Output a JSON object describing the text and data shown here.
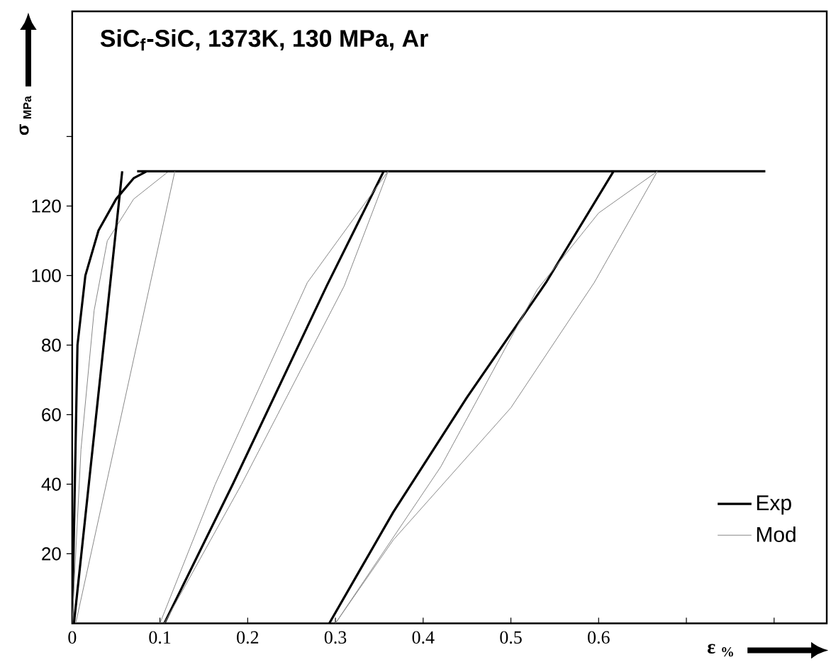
{
  "chart_data": {
    "type": "line",
    "title": "SiC$_{f}$-SiC, 1373K, 130 MPa, Ar",
    "xlabel": "ε $_{%}$",
    "ylabel": "σ $_{MPa}$",
    "xlim": [
      0,
      0.86
    ],
    "ylim": [
      0,
      176
    ],
    "xticks": [
      0,
      0.1,
      0.2,
      0.3,
      0.4,
      0.5,
      0.6,
      {
        "value": 0.7,
        "label": null
      },
      {
        "value": 0.8,
        "label": null
      }
    ],
    "yticks": [
      20,
      40,
      60,
      80,
      100,
      120,
      {
        "value": 140,
        "label": null
      }
    ],
    "legend": "bottom right",
    "grid": false,
    "marker": "none",
    "line_style": "solid",
    "series": [
      {
        "name": "Exp",
        "color": "#000000",
        "x": [
          0,
          0.003,
          0.006,
          0.015,
          0.03,
          0.05,
          0.07,
          0.085
        ],
        "values": [
          0,
          40,
          80,
          100,
          113,
          122,
          128,
          130
        ]
      },
      {
        "name": "Mod",
        "color": "#888888",
        "x": [
          0,
          0.01,
          0.025,
          0.04,
          0.07,
          0.11
        ],
        "values": [
          0,
          50,
          90,
          110,
          122,
          130
        ]
      },
      {
        "color": "#000000",
        "x": [
          0.074,
          0.79
        ],
        "values": [
          130,
          130
        ]
      },
      {
        "color": "#000000",
        "x": [
          0.057,
          0.002
        ],
        "values": [
          130,
          0
        ]
      },
      {
        "color": "#888888",
        "x": [
          0.117,
          0.004
        ],
        "values": [
          130,
          0
        ]
      },
      {
        "color": "#000000",
        "x": [
          0.105,
          0.183,
          0.29,
          0.355
        ],
        "values": [
          0,
          40,
          97,
          130
        ]
      },
      {
        "color": "#888888",
        "x": [
          0.1,
          0.163,
          0.268,
          0.36,
          0.31,
          0.193,
          0.105
        ],
        "values": [
          0,
          40,
          98,
          130,
          97,
          40,
          0
        ]
      },
      {
        "color": "#000000",
        "x": [
          0.293,
          0.366,
          0.45,
          0.54,
          0.617
        ],
        "values": [
          0,
          32,
          65,
          98,
          130
        ]
      },
      {
        "color": "#888888",
        "x": [
          0.3,
          0.42,
          0.53,
          0.6,
          0.667
        ],
        "values": [
          0,
          45,
          96,
          118,
          130
        ]
      },
      {
        "color": "#888888",
        "x": [
          0.667,
          0.595,
          0.5,
          0.366,
          0.3
        ],
        "values": [
          130,
          98,
          62,
          24,
          0
        ]
      }
    ]
  }
}
